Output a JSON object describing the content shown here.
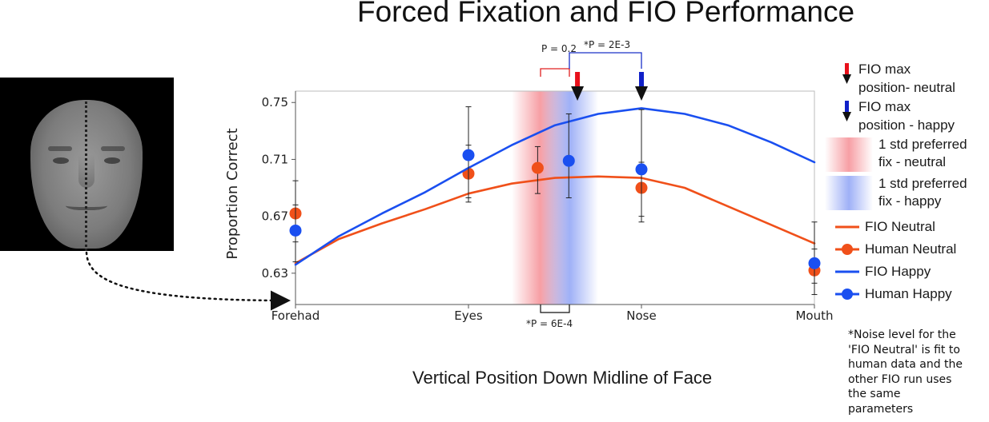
{
  "chart_data": {
    "type": "line",
    "title": "Forced Fixation and FIO Performance",
    "xlabel": "Vertical Position Down Midline of Face",
    "ylabel": "Proportion Correct",
    "categories": [
      "Forehad",
      "Eyes",
      "Nose",
      "Mouth"
    ],
    "x_range": [
      0,
      3
    ],
    "ylim": [
      0.608,
      0.758
    ],
    "yticks": [
      0.63,
      0.67,
      0.71,
      0.75
    ],
    "ytick_labels": [
      "0.63",
      "0.67",
      "0.71",
      "0.75"
    ],
    "grid": false,
    "legend_position": "right",
    "series": [
      {
        "name": "FIO Neutral",
        "kind": "line",
        "color": "#f0501a",
        "x": [
          0,
          0.25,
          0.5,
          0.75,
          1.0,
          1.25,
          1.5,
          1.75,
          2.0,
          2.25,
          2.5,
          2.75,
          3.0
        ],
        "y": [
          0.637,
          0.654,
          0.665,
          0.675,
          0.686,
          0.693,
          0.697,
          0.698,
          0.697,
          0.69,
          0.677,
          0.664,
          0.651
        ]
      },
      {
        "name": "Human Neutral",
        "kind": "scatter",
        "color": "#f0501a",
        "x": [
          0,
          1.0,
          1.4,
          2.0,
          3.0
        ],
        "y": [
          0.672,
          0.7,
          0.704,
          0.69,
          0.632
        ],
        "err_low": [
          0.652,
          0.68,
          0.686,
          0.666,
          0.615
        ],
        "err_high": [
          0.695,
          0.72,
          0.719,
          0.708,
          0.647
        ]
      },
      {
        "name": "FIO Happy",
        "kind": "line",
        "color": "#1a4ff0",
        "x": [
          0,
          0.25,
          0.5,
          0.75,
          1.0,
          1.25,
          1.5,
          1.75,
          2.0,
          2.25,
          2.5,
          2.75,
          3.0
        ],
        "y": [
          0.636,
          0.656,
          0.672,
          0.687,
          0.704,
          0.72,
          0.734,
          0.742,
          0.746,
          0.742,
          0.734,
          0.722,
          0.708
        ]
      },
      {
        "name": "Human Happy",
        "kind": "scatter",
        "color": "#1a4ff0",
        "x": [
          0,
          1.0,
          1.58,
          2.0,
          3.0
        ],
        "y": [
          0.66,
          0.713,
          0.709,
          0.703,
          0.637
        ],
        "err_low": [
          0.638,
          0.683,
          0.683,
          0.67,
          0.623
        ],
        "err_high": [
          0.678,
          0.747,
          0.742,
          0.745,
          0.666
        ]
      }
    ],
    "bands": [
      {
        "label": "1 std preferred fix - neutral",
        "color": "#f0505a",
        "center": 1.4,
        "from": 1.25,
        "to": 1.58
      },
      {
        "label": "1 std preferred fix - happy",
        "color": "#5070f0",
        "center": 1.58,
        "from": 1.42,
        "to": 1.75
      }
    ],
    "max_markers": [
      {
        "label": "FIO max position- neutral",
        "color": "#e8101a",
        "x": 1.63
      },
      {
        "label": "FIO max position - happy",
        "color": "#1020c8",
        "x": 2.0
      }
    ],
    "annotations": {
      "p_neutral": "P = 0.2",
      "p_happy": "*P = 2E-3",
      "p_bottom": "*P = 6E-4"
    }
  },
  "legend": {
    "neutral_max_line1": "FIO max",
    "neutral_max_line2": "position- neutral",
    "happy_max_line1": "FIO max",
    "happy_max_line2": "position - happy",
    "neutral_band_line1": "1 std preferred",
    "neutral_band_line2": "fix - neutral",
    "happy_band_line1": "1 std preferred",
    "happy_band_line2": "fix - happy",
    "fio_neutral": "FIO Neutral",
    "human_neutral": "Human Neutral",
    "fio_happy": "FIO Happy",
    "human_happy": "Human Happy"
  },
  "footnote": {
    "line1": "*Noise level for the",
    "line2": "'FIO Neutral' is fit to",
    "line3": "human data and the",
    "line4": "other FIO run uses",
    "line5": "the same",
    "line6": "parameters"
  },
  "colors": {
    "neutral": "#f0501a",
    "happy": "#1a4ff0",
    "neutral_marker": "#e8101a",
    "happy_marker": "#1020c8"
  }
}
